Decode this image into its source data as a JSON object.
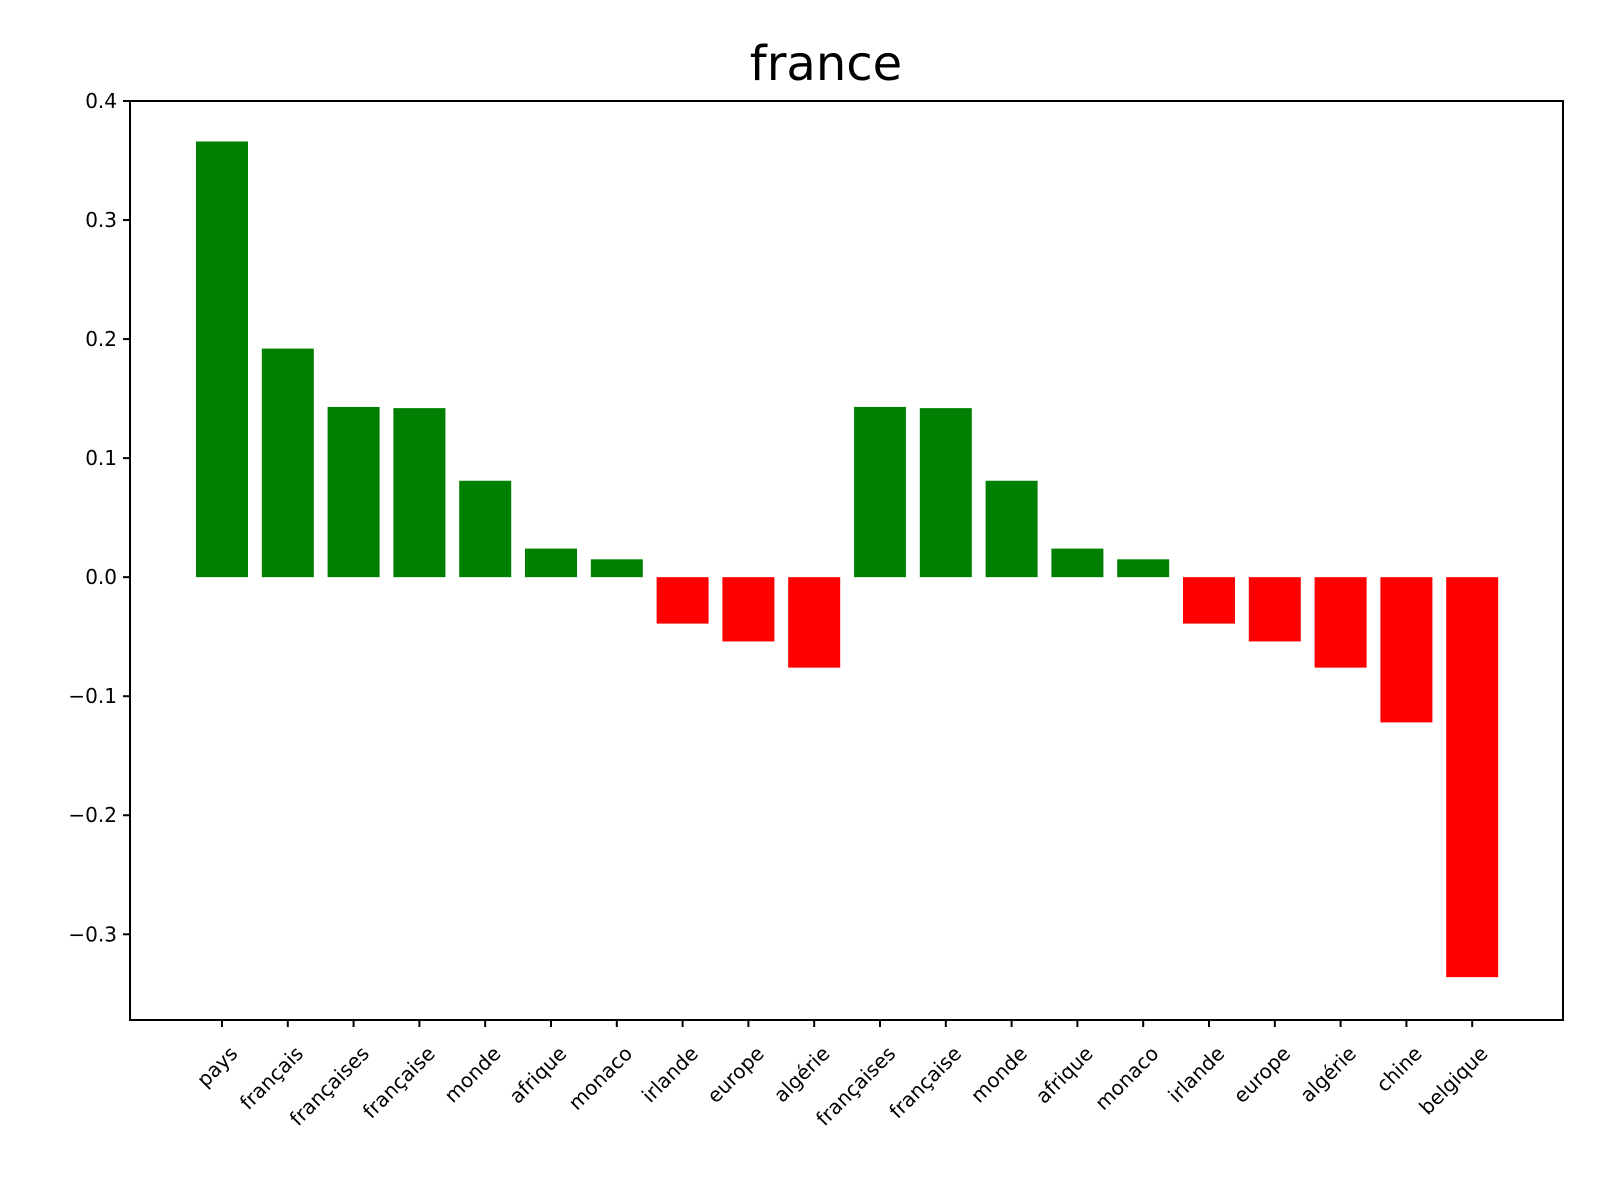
{
  "chart_data": {
    "type": "bar",
    "title": "france",
    "xlabel": "",
    "ylabel": "",
    "ylim": [
      -0.372,
      0.4
    ],
    "yticks": [
      0.4,
      0.3,
      0.2,
      0.1,
      0.0,
      -0.1,
      -0.2,
      -0.3
    ],
    "ytick_labels": [
      "0.4",
      "0.3",
      "0.2",
      "0.1",
      "0.0",
      "−0.1",
      "−0.2",
      "−0.3"
    ],
    "grid": false,
    "legend": "none",
    "categories": [
      "pays",
      "français",
      "françaises",
      "française",
      "monde",
      "afrique",
      "monaco",
      "irlande",
      "europe",
      "algérie",
      "françaises",
      "française",
      "monde",
      "afrique",
      "monaco",
      "irlande",
      "europe",
      "algérie",
      "chine",
      "belgique"
    ],
    "values": [
      0.366,
      0.192,
      0.143,
      0.142,
      0.081,
      0.024,
      0.015,
      -0.039,
      -0.054,
      -0.076,
      0.143,
      0.142,
      0.081,
      0.024,
      0.015,
      -0.039,
      -0.054,
      -0.076,
      -0.122,
      -0.336
    ],
    "colors": {
      "positive": "#008000",
      "negative": "#ff0000"
    }
  }
}
